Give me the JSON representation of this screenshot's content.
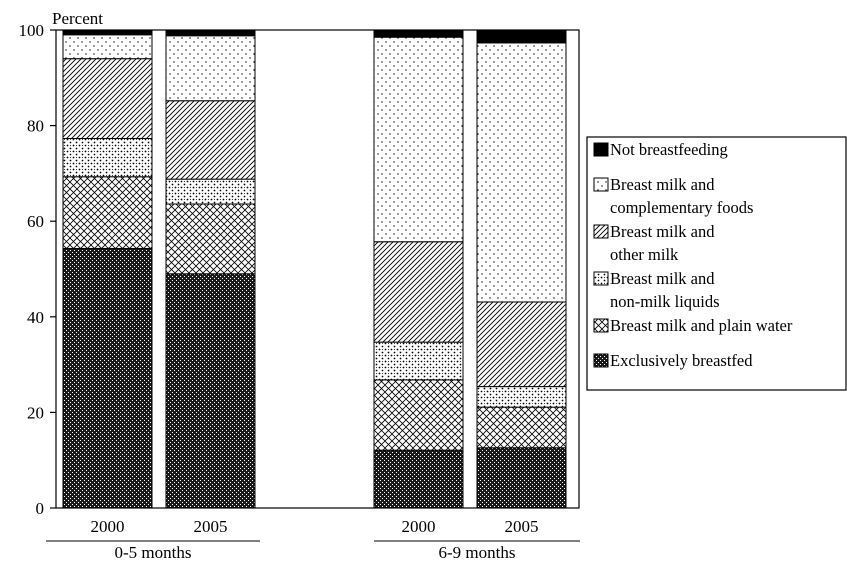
{
  "chart_data": {
    "type": "bar",
    "stacked": true,
    "ylabel": "Percent",
    "ylim": [
      0,
      100
    ],
    "yticks": [
      0,
      20,
      40,
      60,
      80,
      100
    ],
    "groups": [
      {
        "label": "0-5 months",
        "categories": [
          "2000",
          "2005"
        ]
      },
      {
        "label": "6-9 months",
        "categories": [
          "2000",
          "2005"
        ]
      }
    ],
    "categories": [
      "0-5 months 2000",
      "0-5 months 2005",
      "6-9 months 2000",
      "6-9 months 2005"
    ],
    "series": [
      {
        "name": "Exclusively breastfed",
        "values": [
          54.3,
          49.0,
          12.1,
          12.6
        ],
        "pattern": "dense"
      },
      {
        "name": "Breast milk and plain water",
        "values": [
          15.0,
          14.6,
          14.7,
          8.5
        ],
        "pattern": "crosshatch"
      },
      {
        "name": "Breast milk and non-milk liquids",
        "values": [
          8.0,
          5.2,
          7.9,
          4.3
        ],
        "pattern": "dots"
      },
      {
        "name": "Breast milk and other milk",
        "values": [
          16.7,
          16.4,
          21.0,
          17.7
        ],
        "pattern": "diagonal"
      },
      {
        "name": "Breast milk and complementary foods",
        "values": [
          5.0,
          13.6,
          42.8,
          54.2
        ],
        "pattern": "sparse-dots"
      },
      {
        "name": "Not breastfeeding",
        "values": [
          1.0,
          1.2,
          1.5,
          2.7
        ],
        "pattern": "solid"
      }
    ],
    "legend": {
      "position": "right",
      "entries": [
        {
          "lines": [
            "Not breastfeeding"
          ],
          "pattern": "solid"
        },
        {
          "lines": [
            "Breast milk and",
            "complementary foods"
          ],
          "pattern": "sparse-dots"
        },
        {
          "lines": [
            "Breast milk and",
            "other milk"
          ],
          "pattern": "diagonal"
        },
        {
          "lines": [
            "Breast milk and",
            "non-milk liquids"
          ],
          "pattern": "dots"
        },
        {
          "lines": [
            "Breast milk and plain water"
          ],
          "pattern": "crosshatch"
        },
        {
          "lines": [
            "Exclusively breastfed"
          ],
          "pattern": "dense"
        }
      ]
    },
    "grid": false,
    "colors": {
      "ink": "#000000",
      "background": "#ffffff"
    }
  }
}
